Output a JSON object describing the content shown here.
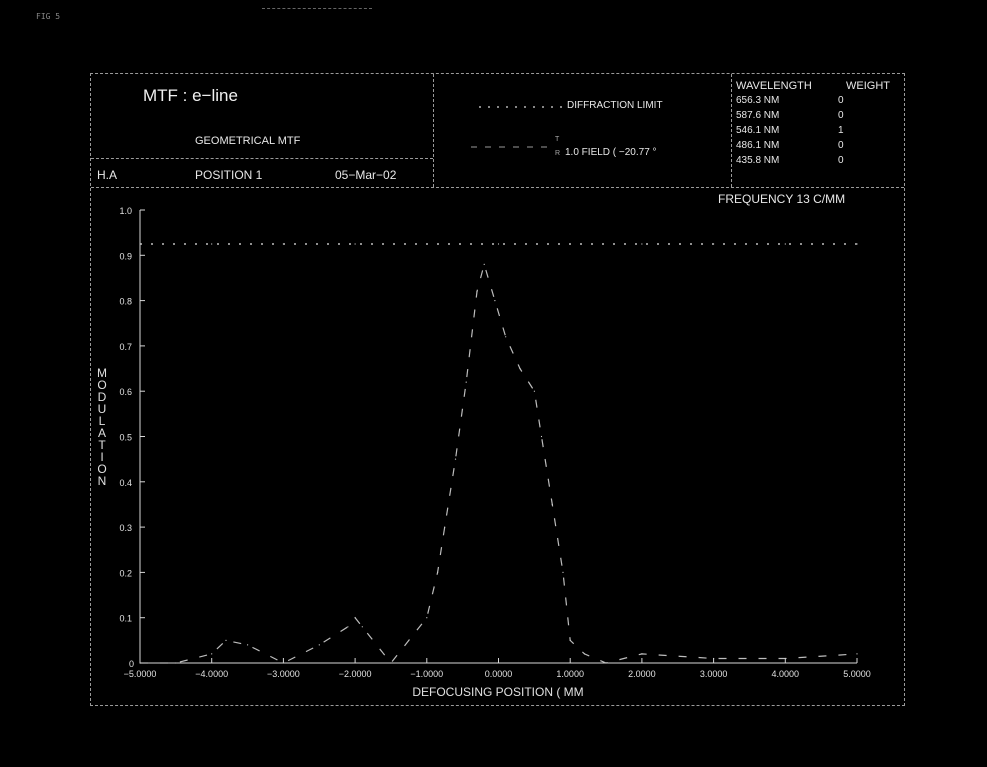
{
  "corner_tag": "FIG 5",
  "header": {
    "title": "MTF :  e−line",
    "subtitle": "GEOMETRICAL MTF",
    "left_code": "H.A",
    "position_label": "POSITION  1",
    "date": "05−Mar−02",
    "legend": {
      "diffraction_label": "DIFFRACTION LIMIT",
      "field_label": "1.0   FIELD  (  −20.77  °",
      "field_marks": [
        "T",
        "R"
      ]
    },
    "wavelength_table": {
      "col_headers": [
        "WAVELENGTH",
        "WEIGHT"
      ],
      "rows": [
        {
          "wavelength": "656.3 NM",
          "weight": "0"
        },
        {
          "wavelength": "587.6 NM",
          "weight": "0"
        },
        {
          "wavelength": "546.1 NM",
          "weight": "1"
        },
        {
          "wavelength": "486.1 NM",
          "weight": "0"
        },
        {
          "wavelength": "435.8 NM",
          "weight": "0"
        }
      ]
    }
  },
  "frequency_label": "FREQUENCY  13  C/MM",
  "chart_data": {
    "type": "line",
    "xlabel": "DEFOCUSING POSITION ( MM",
    "ylabel": "MODULATION",
    "xlim": [
      -5.0,
      5.0
    ],
    "ylim": [
      0.0,
      1.0
    ],
    "x_ticks": [
      -5,
      -4,
      -3,
      -2,
      -1,
      0,
      1,
      2,
      3,
      4,
      5
    ],
    "x_tick_labels": [
      "−5.0000",
      "−4.0000",
      "−3.0000",
      "−2.0000",
      "−1.0000",
      "0.0000",
      "1.0000",
      "2.0000",
      "3.0000",
      "4.0000",
      "5.0000"
    ],
    "y_ticks": [
      0.1,
      0.2,
      0.3,
      0.4,
      0.5,
      0.6,
      0.7,
      0.8,
      0.9,
      1.0
    ],
    "y_tick_labels": [
      "0.1",
      "0.2",
      "0.3",
      "0.4",
      "0.5",
      "0.6",
      "0.7",
      "0.8",
      "0.9",
      "1.0"
    ],
    "y_zero_label": "0",
    "grid": false,
    "series": [
      {
        "style": "dotted",
        "x": [
          -5.0,
          -4.0,
          -3.0,
          -2.0,
          -1.0,
          0.0,
          1.0,
          2.0,
          3.0,
          4.0,
          5.0
        ],
        "y": [
          0.925,
          0.925,
          0.925,
          0.925,
          0.925,
          0.925,
          0.925,
          0.925,
          0.925,
          0.925,
          0.925
        ]
      },
      {
        "style": "dashed",
        "x": [
          -5.0,
          -4.5,
          -4.0,
          -3.8,
          -3.5,
          -3.0,
          -2.5,
          -2.1,
          -2.0,
          -1.9,
          -1.5,
          -1.0,
          -0.85,
          -0.75,
          -0.6,
          -0.45,
          -0.3,
          -0.2,
          -0.05,
          0.1,
          0.3,
          0.5,
          0.6,
          0.75,
          0.9,
          1.0,
          1.2,
          1.5,
          2.0,
          3.0,
          4.0,
          5.0
        ],
        "y": [
          0.0,
          0.0,
          0.02,
          0.05,
          0.04,
          0.0,
          0.04,
          0.08,
          0.1,
          0.08,
          0.0,
          0.1,
          0.2,
          0.3,
          0.45,
          0.62,
          0.82,
          0.88,
          0.8,
          0.72,
          0.65,
          0.6,
          0.5,
          0.35,
          0.2,
          0.05,
          0.02,
          0.0,
          0.02,
          0.01,
          0.01,
          0.02
        ]
      }
    ]
  }
}
